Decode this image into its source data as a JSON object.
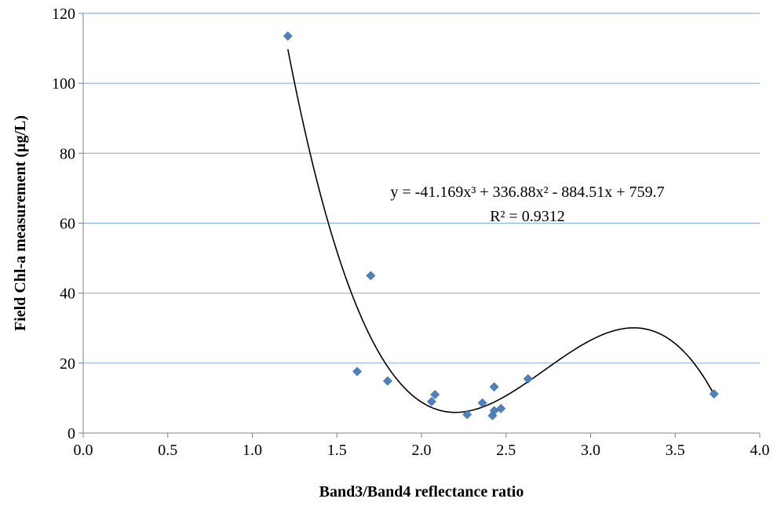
{
  "chart_data": {
    "type": "scatter",
    "xlabel": "Band3/Band4 reflectance ratio",
    "ylabel": "Field Chl-a measurement (µg/L)",
    "xlim": [
      0,
      4
    ],
    "ylim": [
      0,
      120
    ],
    "x_ticks": [
      "0.0",
      "0.5",
      "1.0",
      "1.5",
      "2.0",
      "2.5",
      "3.0",
      "3.5",
      "4.0"
    ],
    "y_ticks": [
      "0",
      "20",
      "40",
      "60",
      "80",
      "100",
      "120"
    ],
    "grid": "horizontal",
    "points": [
      {
        "x": 1.21,
        "y": 113.5
      },
      {
        "x": 1.62,
        "y": 17.6
      },
      {
        "x": 1.7,
        "y": 45.0
      },
      {
        "x": 1.8,
        "y": 14.9
      },
      {
        "x": 2.06,
        "y": 9.0
      },
      {
        "x": 2.08,
        "y": 11.0
      },
      {
        "x": 2.27,
        "y": 5.3
      },
      {
        "x": 2.36,
        "y": 8.6
      },
      {
        "x": 2.42,
        "y": 5.0
      },
      {
        "x": 2.43,
        "y": 6.4
      },
      {
        "x": 2.43,
        "y": 13.2
      },
      {
        "x": 2.47,
        "y": 7.0
      },
      {
        "x": 2.63,
        "y": 15.5
      },
      {
        "x": 3.73,
        "y": 11.2
      }
    ],
    "trendline": {
      "type": "polynomial",
      "order": 3,
      "coefficients": [
        -41.169,
        336.88,
        -884.51,
        759.7
      ],
      "x_range": [
        1.21,
        3.73
      ],
      "equation_label": "y = -41.169x³ + 336.88x² - 884.51x + 759.7",
      "r2_label": "R² = 0.9312"
    },
    "colors": {
      "marker": "#4f81bd",
      "gridline": "#8db3e2",
      "trendline": "#000000",
      "axis": "#808080"
    }
  }
}
